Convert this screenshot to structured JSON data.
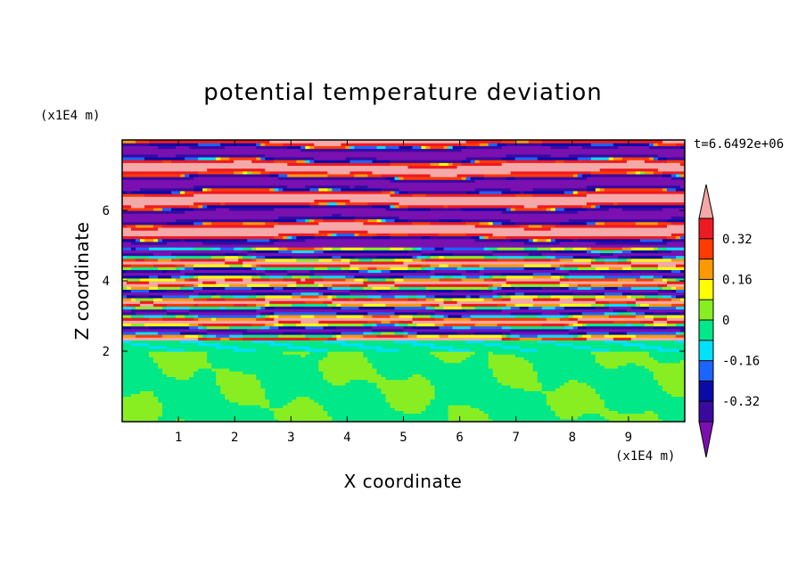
{
  "chart_data": {
    "type": "heatmap",
    "title": "potential temperature deviation",
    "xlabel": "X coordinate",
    "ylabel": "Z coordinate",
    "x_unit": "(x1E4 m)",
    "y_unit": "(x1E4 m)",
    "time_label": "t=6.6492e+06",
    "xlim": [
      0,
      10
    ],
    "ylim": [
      0,
      8
    ],
    "x_ticks": [
      1,
      2,
      3,
      4,
      5,
      6,
      7,
      8,
      9
    ],
    "y_ticks": [
      2,
      4,
      6
    ],
    "colorbar": {
      "levels": [
        -0.4,
        -0.32,
        -0.24,
        -0.16,
        -0.08,
        0,
        0.08,
        0.16,
        0.24,
        0.32,
        0.4
      ],
      "labels": [
        "-0.32",
        "-0.16",
        "0",
        "0.16",
        "0.32"
      ],
      "label_values": [
        -0.32,
        -0.16,
        0,
        0.16,
        0.32
      ],
      "colors": [
        "#7a10b0",
        "#3a0aa0",
        "#0a0aa8",
        "#1a64ff",
        "#00e0ff",
        "#00e888",
        "#88ee22",
        "#ffff00",
        "#ff9900",
        "#ff3a00",
        "#ee1a22",
        "#f4a8a8"
      ],
      "under_color": "#7a10b0",
      "over_color": "#f4a8a8"
    },
    "bands": [
      {
        "z_min": 0.0,
        "z_max": 2.0,
        "value_range": [
          0,
          0.08
        ],
        "pattern": "green mixed layer"
      },
      {
        "z_min": 2.0,
        "z_max": 2.3,
        "value_range": [
          -0.16,
          0
        ],
        "pattern": "thin cyan/green band"
      },
      {
        "z_min": 2.3,
        "z_max": 5.0,
        "value_range": [
          -0.4,
          0.4
        ],
        "pattern": "strong alternating stripes"
      },
      {
        "z_min": 5.0,
        "z_max": 8.0,
        "value_range": [
          -0.4,
          0.4
        ],
        "pattern": "alternating purple/pink stripes"
      }
    ]
  }
}
